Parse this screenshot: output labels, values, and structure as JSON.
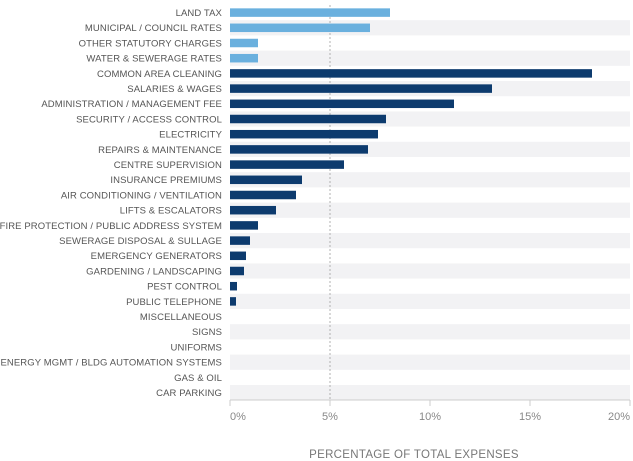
{
  "chart_data": {
    "type": "bar",
    "orientation": "horizontal",
    "xlabel": "PERCENTAGE OF TOTAL EXPENSES",
    "ylabel": "",
    "xlim": [
      0,
      20
    ],
    "xticks": [
      "0%",
      "5%",
      "10%",
      "15%",
      "20%"
    ],
    "reference_line": 5,
    "grid": "alternating row bands",
    "categories": [
      "LAND TAX",
      "MUNICIPAL / COUNCIL RATES",
      "OTHER STATUTORY CHARGES",
      "WATER & SEWERAGE RATES",
      "COMMON AREA CLEANING",
      "SALARIES & WAGES",
      "ADMINISTRATION / MANAGEMENT FEE",
      "SECURITY / ACCESS CONTROL",
      "ELECTRICITY",
      "REPAIRS & MAINTENANCE",
      "CENTRE SUPERVISION",
      "INSURANCE PREMIUMS",
      "AIR CONDITIONING / VENTILATION",
      "LIFTS & ESCALATORS",
      "FIRE PROTECTION / PUBLIC ADDRESS SYSTEM",
      "SEWERAGE DISPOSAL & SULLAGE",
      "EMERGENCY GENERATORS",
      "GARDENING / LANDSCAPING",
      "PEST CONTROL",
      "PUBLIC TELEPHONE",
      "MISCELLANEOUS",
      "SIGNS",
      "UNIFORMS",
      "ENERGY MGMT / BLDG AUTOMATION SYSTEMS",
      "GAS & OIL",
      "CAR PARKING"
    ],
    "values": [
      8.0,
      7.0,
      1.4,
      1.4,
      18.1,
      13.1,
      11.2,
      7.8,
      7.4,
      6.9,
      5.7,
      3.6,
      3.3,
      2.3,
      1.4,
      1.0,
      0.8,
      0.7,
      0.35,
      0.3,
      0,
      0,
      0,
      0,
      0,
      0
    ],
    "groups": [
      "statutory",
      "statutory",
      "statutory",
      "statutory",
      "operating",
      "operating",
      "operating",
      "operating",
      "operating",
      "operating",
      "operating",
      "operating",
      "operating",
      "operating",
      "operating",
      "operating",
      "operating",
      "operating",
      "operating",
      "operating",
      "operating",
      "operating",
      "operating",
      "operating",
      "operating",
      "operating"
    ],
    "colors": {
      "statutory": "#6ab0de",
      "operating": "#0d3b6e",
      "band": "#f2f2f4",
      "refline": "#b0b0b0",
      "axis": "#cccccc"
    }
  }
}
